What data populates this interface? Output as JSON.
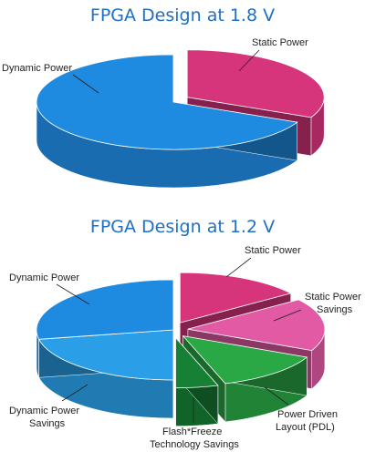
{
  "chart_data": [
    {
      "type": "pie",
      "title": "FPGA Design at 1.8 V",
      "slices": [
        {
          "label": "Static Power",
          "value": 32,
          "color": "#d6357b",
          "exploded": true
        },
        {
          "label": "Dynamic Power",
          "value": 68,
          "color": "#1f8be0",
          "exploded": false
        }
      ]
    },
    {
      "type": "pie",
      "title": "FPGA Design at 1.2 V",
      "slices": [
        {
          "label": "Static Power",
          "value": 15,
          "color": "#d6357b",
          "exploded": true
        },
        {
          "label": "Static Power Savings",
          "value": 17,
          "color": "#e15aa3",
          "exploded": true
        },
        {
          "label": "Power Driven Layout (PDL)",
          "value": 13,
          "color": "#2aa845",
          "exploded": true
        },
        {
          "label": "Flash*Freeze Technology Savings",
          "value": 5,
          "color": "#168035",
          "exploded": true
        },
        {
          "label": "Dynamic Power Savings",
          "value": 22,
          "color": "#2a9ee6",
          "exploded": false
        },
        {
          "label": "Dynamic Power",
          "value": 28,
          "color": "#1f8be0",
          "exploded": false
        }
      ]
    }
  ],
  "labels": {
    "chart1": {
      "static": "Static Power",
      "dynamic": "Dynamic Power"
    },
    "chart2": {
      "static": "Static Power",
      "static_savings_1": "Static Power",
      "static_savings_2": "Savings",
      "dynamic": "Dynamic Power",
      "dynamic_savings_1": "Dynamic Power",
      "dynamic_savings_2": "Savings",
      "flash_1": "Flash*Freeze",
      "flash_2": "Technology Savings",
      "pdl_1": "Power Driven",
      "pdl_2": "Layout (PDL)"
    }
  }
}
